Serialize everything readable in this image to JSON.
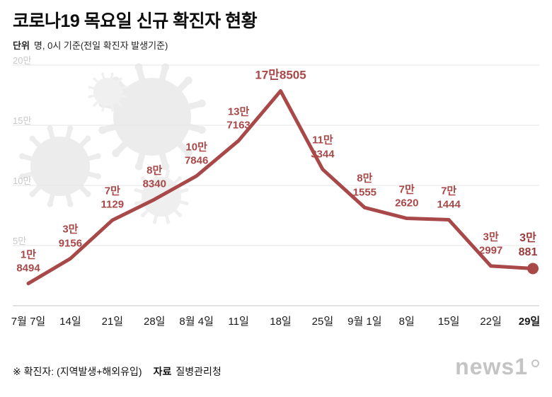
{
  "header": {
    "title": "코로나19 목요일 신규 확진자 현황",
    "unit_label": "단위",
    "subtitle": "명, 0시 기준(전일 확진자 발생기준)"
  },
  "chart_data": {
    "type": "line",
    "title": "코로나19 목요일 신규 확진자 현황",
    "x_tick_labels": [
      "7월 7일",
      "14일",
      "21일",
      "28일",
      "8월 4일",
      "11일",
      "18일",
      "25일",
      "9월 1일",
      "8일",
      "15일",
      "22일",
      "29일"
    ],
    "values": [
      18494,
      39156,
      71129,
      88340,
      107846,
      137163,
      178505,
      113344,
      81555,
      72620,
      71444,
      32997,
      30881
    ],
    "point_labels": [
      [
        "1만",
        "8494"
      ],
      [
        "3만",
        "9156"
      ],
      [
        "7만",
        "1129"
      ],
      [
        "8만",
        "8340"
      ],
      [
        "10만",
        "7846"
      ],
      [
        "13만",
        "7163"
      ],
      [
        "17만8505"
      ],
      [
        "11만",
        "3344"
      ],
      [
        "8만",
        "1555"
      ],
      [
        "7만",
        "2620"
      ],
      [
        "7만",
        "1444"
      ],
      [
        "3만",
        "2997"
      ],
      [
        "3만",
        "881"
      ]
    ],
    "y_ticks": [
      {
        "value": 200000,
        "label": "20만"
      },
      {
        "value": 150000,
        "label": "15만"
      },
      {
        "value": 100000,
        "label": "10만"
      },
      {
        "value": 50000,
        "label": "5만"
      }
    ],
    "ylim": [
      0,
      200000
    ],
    "grid": true,
    "legend": "none",
    "colors": {
      "line": "#a84848",
      "last_label": "#993b3b",
      "grid": "#e6e6e6",
      "axis": "#c6c6c6",
      "y_tick_text": "#c9c9c9",
      "x_tick_text": "#1a1a1a",
      "decor_virus": "#ececec"
    }
  },
  "footer": {
    "note": "※ 확진자: (지역발생+해외유입)",
    "source_label": "자료",
    "source": "질병관리청",
    "logo": "news1"
  }
}
